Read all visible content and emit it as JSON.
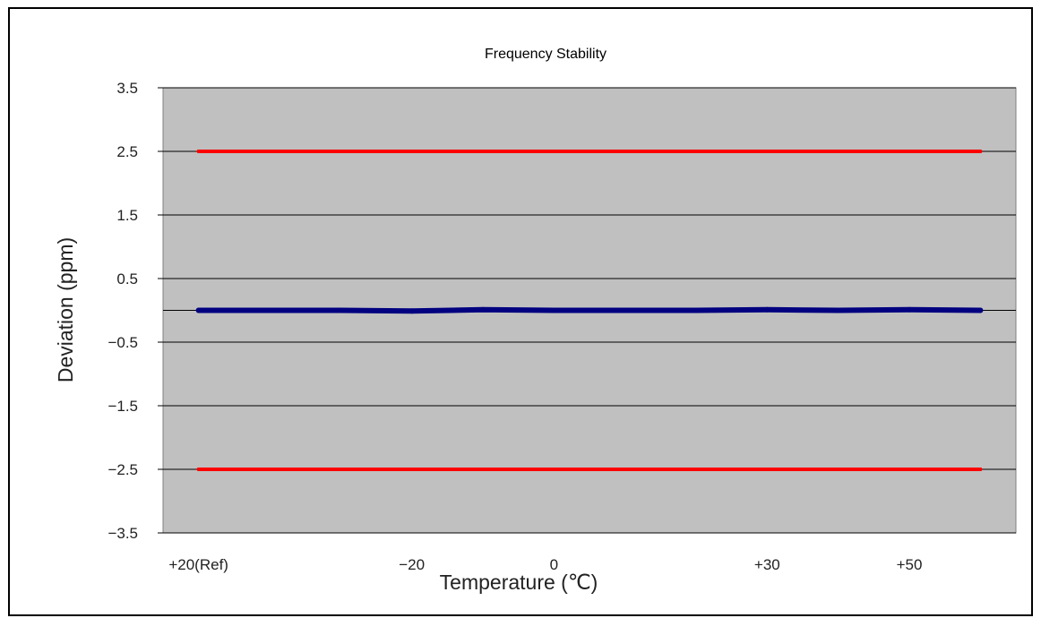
{
  "chart_data": {
    "type": "line",
    "title": "Frequency Stability",
    "xlabel": "Temperature (℃)",
    "ylabel": "Deviation (ppm)",
    "categories": [
      "+20(Ref)",
      "",
      "",
      "−20",
      "",
      "0",
      "",
      "",
      "+30",
      "",
      "+50",
      ""
    ],
    "ylim": [
      -3.5,
      3.5
    ],
    "yticks": [
      "3.5",
      "2.5",
      "1.5",
      "0.5",
      "−0.5",
      "−1.5",
      "−2.5",
      "−3.5"
    ],
    "ytick_values": [
      3.5,
      2.5,
      1.5,
      0.5,
      -0.5,
      -1.5,
      -2.5,
      -3.5
    ],
    "grid": true,
    "series": [
      {
        "name": "",
        "color": "#ff0000",
        "values": [
          2.5,
          2.5,
          2.5,
          2.5,
          2.5,
          2.5,
          2.5,
          2.5,
          2.5,
          2.5,
          2.5,
          2.5
        ]
      },
      {
        "name": "",
        "color": "#000080",
        "values": [
          0.0,
          0.0,
          0.0,
          -0.01,
          0.01,
          0.0,
          0.0,
          0.0,
          0.01,
          0.0,
          0.01,
          0.0
        ]
      },
      {
        "name": "",
        "color": "#ff0000",
        "values": [
          -2.5,
          -2.5,
          -2.5,
          -2.5,
          -2.5,
          -2.5,
          -2.5,
          -2.5,
          -2.5,
          -2.5,
          -2.5,
          -2.5
        ]
      }
    ],
    "colors": {
      "plot_background": "#c0c0c0",
      "gridline": "#000000"
    }
  }
}
